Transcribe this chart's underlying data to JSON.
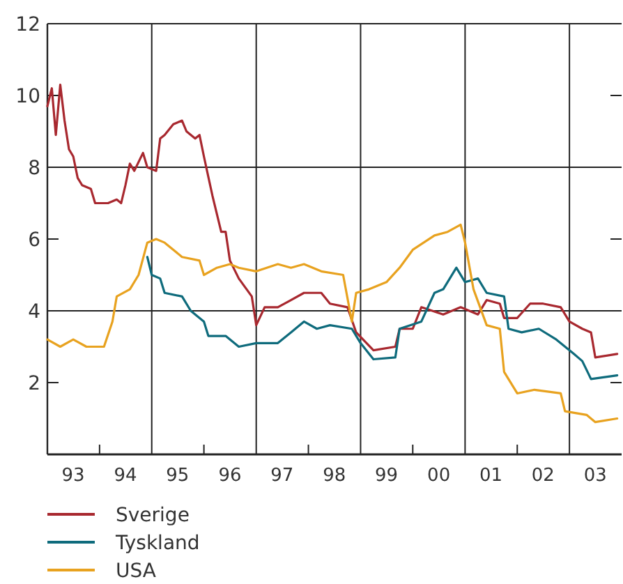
{
  "chart_data": {
    "type": "line",
    "xlim": [
      "1993-01",
      "2004-01"
    ],
    "ylim": [
      0,
      12
    ],
    "yticks": [
      2,
      4,
      6,
      8,
      10,
      12
    ],
    "xticks": [
      {
        "value": "1993-07",
        "label": "93"
      },
      {
        "value": "1994-07",
        "label": "94"
      },
      {
        "value": "1995-07",
        "label": "95"
      },
      {
        "value": "1996-07",
        "label": "96"
      },
      {
        "value": "1997-07",
        "label": "97"
      },
      {
        "value": "1998-07",
        "label": "98"
      },
      {
        "value": "1999-07",
        "label": "99"
      },
      {
        "value": "2000-07",
        "label": "00"
      },
      {
        "value": "2001-07",
        "label": "01"
      },
      {
        "value": "2002-07",
        "label": "02"
      },
      {
        "value": "2003-07",
        "label": "03"
      },
      {
        "value": "1994-01",
        "label": null
      },
      {
        "value": "1996-01",
        "label": null
      },
      {
        "value": "1998-01",
        "label": null
      },
      {
        "value": "2000-01",
        "label": null
      },
      {
        "value": "2002-01",
        "label": null
      }
    ],
    "ref_lines": [
      {
        "axis": "y",
        "value": 4,
        "color": "#222222"
      },
      {
        "axis": "y",
        "value": 8,
        "color": "#222222"
      },
      {
        "axis": "x",
        "value": "1995-01",
        "color": "#222222"
      },
      {
        "axis": "x",
        "value": "1997-01",
        "color": "#222222"
      },
      {
        "axis": "x",
        "value": "1999-01",
        "color": "#222222"
      },
      {
        "axis": "x",
        "value": "2001-01",
        "color": "#222222"
      },
      {
        "axis": "x",
        "value": "2003-01",
        "color": "#222222"
      }
    ],
    "legend": "bottom",
    "marker": "none",
    "line_style": "solid",
    "series": [
      {
        "name": "Sverige",
        "color": "#a8282f",
        "x": [
          "1993-01",
          "1993-02",
          "1993-03",
          "1993-04",
          "1993-05",
          "1993-06",
          "1993-07",
          "1993-08",
          "1993-09",
          "1993-11",
          "1993-12",
          "1994-03",
          "1994-05",
          "1994-06",
          "1994-07",
          "1994-08",
          "1994-09",
          "1994-11",
          "1994-12",
          "1995-02",
          "1995-03",
          "1995-04",
          "1995-06",
          "1995-08",
          "1995-09",
          "1995-11",
          "1995-12",
          "1996-01",
          "1996-03",
          "1996-05",
          "1996-06",
          "1996-07",
          "1996-09",
          "1996-12",
          "1997-01",
          "1997-03",
          "1997-06",
          "1997-09",
          "1997-12",
          "1998-04",
          "1998-06",
          "1998-10",
          "1998-12",
          "1999-04",
          "1999-09",
          "1999-10",
          "2000-01",
          "2000-03",
          "2000-08",
          "2000-12",
          "2001-04",
          "2001-06",
          "2001-09",
          "2001-10",
          "2002-01",
          "2002-04",
          "2002-07",
          "2002-11",
          "2003-01",
          "2003-04",
          "2003-06",
          "2003-07",
          "2003-12"
        ],
        "values": [
          9.7,
          10.2,
          8.9,
          10.3,
          9.3,
          8.5,
          8.3,
          7.7,
          7.5,
          7.4,
          7.0,
          7.0,
          7.1,
          7.0,
          7.5,
          8.1,
          7.9,
          8.4,
          8.0,
          7.9,
          8.8,
          8.9,
          9.2,
          9.3,
          9.0,
          8.8,
          8.9,
          8.3,
          7.2,
          6.2,
          6.2,
          5.4,
          4.9,
          4.4,
          3.6,
          4.1,
          4.1,
          4.3,
          4.5,
          4.5,
          4.2,
          4.1,
          3.4,
          2.9,
          3.0,
          3.5,
          3.5,
          4.1,
          3.9,
          4.1,
          3.9,
          4.3,
          4.2,
          3.8,
          3.8,
          4.2,
          4.2,
          4.1,
          3.7,
          3.5,
          3.4,
          2.7,
          2.8
        ]
      },
      {
        "name": "Tyskland",
        "color": "#0e6b7c",
        "x": [
          "1994-12",
          "1995-01",
          "1995-03",
          "1995-04",
          "1995-08",
          "1995-10",
          "1996-01",
          "1996-02",
          "1996-06",
          "1996-09",
          "1997-01",
          "1997-06",
          "1997-09",
          "1997-12",
          "1998-03",
          "1998-06",
          "1998-11",
          "1999-01",
          "1999-04",
          "1999-09",
          "1999-10",
          "2000-03",
          "2000-06",
          "2000-08",
          "2000-11",
          "2001-01",
          "2001-04",
          "2001-06",
          "2001-10",
          "2001-11",
          "2002-02",
          "2002-06",
          "2002-10",
          "2003-02",
          "2003-04",
          "2003-06",
          "2003-12"
        ],
        "values": [
          5.5,
          5.0,
          4.9,
          4.5,
          4.4,
          4.0,
          3.7,
          3.3,
          3.3,
          3.0,
          3.1,
          3.1,
          3.4,
          3.7,
          3.5,
          3.6,
          3.5,
          3.1,
          2.65,
          2.7,
          3.5,
          3.7,
          4.5,
          4.6,
          5.2,
          4.8,
          4.9,
          4.5,
          4.4,
          3.5,
          3.4,
          3.5,
          3.2,
          2.8,
          2.6,
          2.1,
          2.2
        ]
      },
      {
        "name": "USA",
        "color": "#e8a21f",
        "x": [
          "1993-01",
          "1993-04",
          "1993-07",
          "1993-10",
          "1994-02",
          "1994-04",
          "1994-05",
          "1994-08",
          "1994-10",
          "1994-12",
          "1995-02",
          "1995-04",
          "1995-08",
          "1995-12",
          "1996-01",
          "1996-04",
          "1996-07",
          "1996-09",
          "1997-01",
          "1997-06",
          "1997-09",
          "1997-12",
          "1998-04",
          "1998-09",
          "1998-11",
          "1998-12",
          "1999-03",
          "1999-07",
          "1999-10",
          "2000-01",
          "2000-06",
          "2000-09",
          "2000-12",
          "2001-01",
          "2001-03",
          "2001-06",
          "2001-09",
          "2001-10",
          "2002-01",
          "2002-05",
          "2002-11",
          "2002-12",
          "2003-05",
          "2003-07",
          "2003-12"
        ],
        "values": [
          3.2,
          3.0,
          3.2,
          3.0,
          3.0,
          3.7,
          4.4,
          4.6,
          5.0,
          5.9,
          6.0,
          5.9,
          5.5,
          5.4,
          5.0,
          5.2,
          5.3,
          5.2,
          5.1,
          5.3,
          5.2,
          5.3,
          5.1,
          5.0,
          3.7,
          4.5,
          4.6,
          4.8,
          5.2,
          5.7,
          6.1,
          6.2,
          6.4,
          5.9,
          4.6,
          3.6,
          3.5,
          2.3,
          1.7,
          1.8,
          1.7,
          1.2,
          1.1,
          0.9,
          1.0
        ]
      }
    ]
  }
}
